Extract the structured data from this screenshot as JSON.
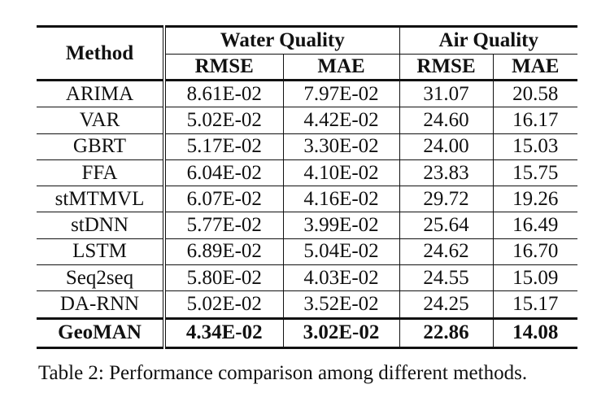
{
  "header": {
    "method": "Method",
    "groups": [
      "Water Quality",
      "Air Quality"
    ],
    "metrics": [
      "RMSE",
      "MAE",
      "RMSE",
      "MAE"
    ]
  },
  "rows": [
    {
      "method": "ARIMA",
      "values": [
        "8.61E-02",
        "7.97E-02",
        "31.07",
        "20.58"
      ]
    },
    {
      "method": "VAR",
      "values": [
        "5.02E-02",
        "4.42E-02",
        "24.60",
        "16.17"
      ]
    },
    {
      "method": "GBRT",
      "values": [
        "5.17E-02",
        "3.30E-02",
        "24.00",
        "15.03"
      ]
    },
    {
      "method": "FFA",
      "values": [
        "6.04E-02",
        "4.10E-02",
        "23.83",
        "15.75"
      ]
    },
    {
      "method": "stMTMVL",
      "values": [
        "6.07E-02",
        "4.16E-02",
        "29.72",
        "19.26"
      ]
    },
    {
      "method": "stDNN",
      "values": [
        "5.77E-02",
        "3.99E-02",
        "25.64",
        "16.49"
      ]
    },
    {
      "method": "LSTM",
      "values": [
        "6.89E-02",
        "5.04E-02",
        "24.62",
        "16.70"
      ]
    },
    {
      "method": "Seq2seq",
      "values": [
        "5.80E-02",
        "4.03E-02",
        "24.55",
        "15.09"
      ]
    },
    {
      "method": "DA-RNN",
      "values": [
        "5.02E-02",
        "3.52E-02",
        "24.25",
        "15.17"
      ]
    }
  ],
  "best_row": {
    "method": "GeoMAN",
    "values": [
      "4.34E-02",
      "3.02E-02",
      "22.86",
      "14.08"
    ]
  },
  "caption": "Table 2: Performance comparison among different methods."
}
